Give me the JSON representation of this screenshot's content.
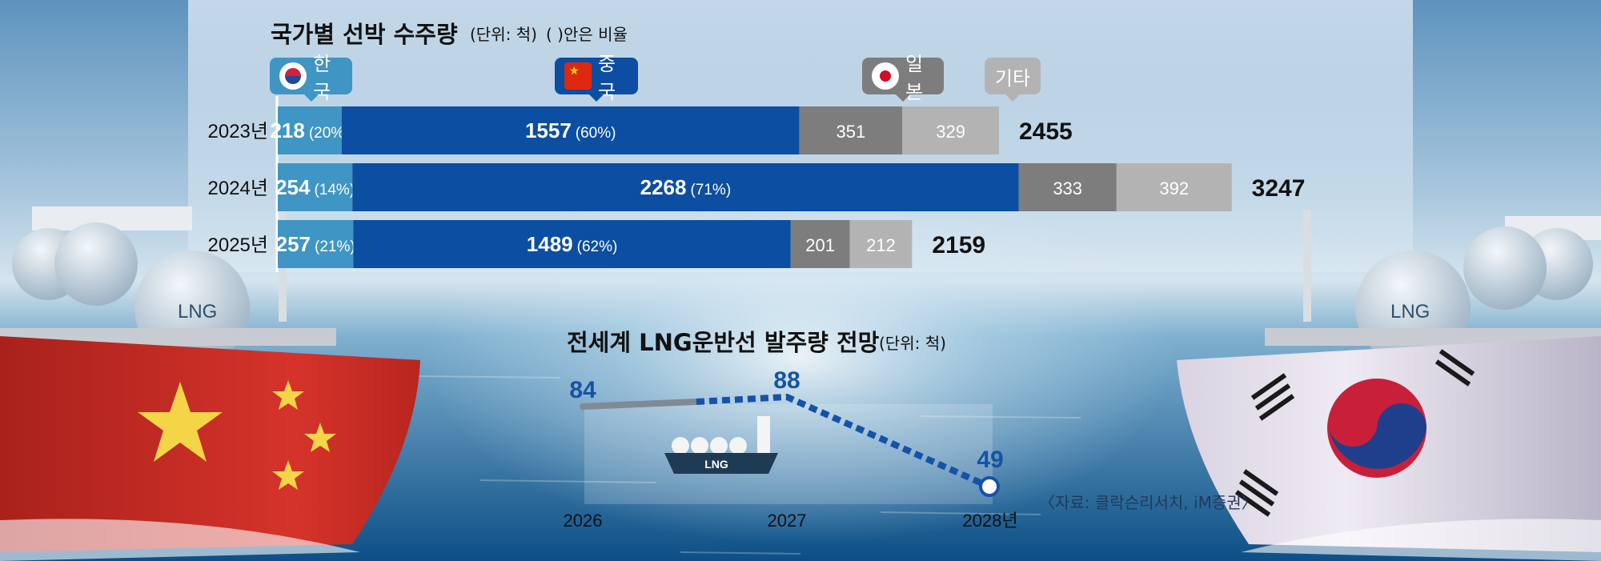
{
  "chart_data": [
    {
      "type": "bar",
      "orientation": "horizontal",
      "stacked": true,
      "title": "국가별 선박 수주량",
      "subtitle": "(단위: 척)",
      "note": "( )안은 비율",
      "categories": [
        "2023년",
        "2024년",
        "2025년"
      ],
      "series": [
        {
          "name": "한국",
          "values": [
            218,
            254,
            257
          ],
          "labels": [
            "(20%)",
            "(14%)",
            "(21%)"
          ],
          "color": "#3f95c4"
        },
        {
          "name": "중국",
          "values": [
            1557,
            2268,
            1489
          ],
          "labels": [
            "(60%)",
            "(71%)",
            "(62%)"
          ],
          "color": "#0b4ea2"
        },
        {
          "name": "일본",
          "values": [
            351,
            333,
            201
          ],
          "color": "#7d7d7d"
        },
        {
          "name": "기타",
          "values": [
            329,
            392,
            212
          ],
          "color": "#b3b3b3"
        }
      ],
      "totals": [
        2455,
        3247,
        2159
      ],
      "legend_placement": "top"
    },
    {
      "type": "line",
      "title": "전세계 LNG운반선 발주량 전망",
      "subtitle": "(단위: 척)",
      "x": [
        "2026",
        "2027",
        "2028년"
      ],
      "values": [
        84,
        88,
        49
      ],
      "line_color": "#1553a8",
      "icon_label": "LNG"
    }
  ],
  "legend": {
    "korea": "한국",
    "china": "중국",
    "japan": "일본",
    "other": "기타"
  },
  "scene": {
    "hull_label_left": "LNG",
    "hull_label_right": "LNG"
  },
  "source": "〈자료: 클락슨리서치, iM증권〉",
  "colors": {
    "korea": "#3f95c4",
    "china": "#0b4ea2",
    "japan": "#7d7d7d",
    "other": "#b3b3b3",
    "line": "#1553a8"
  }
}
